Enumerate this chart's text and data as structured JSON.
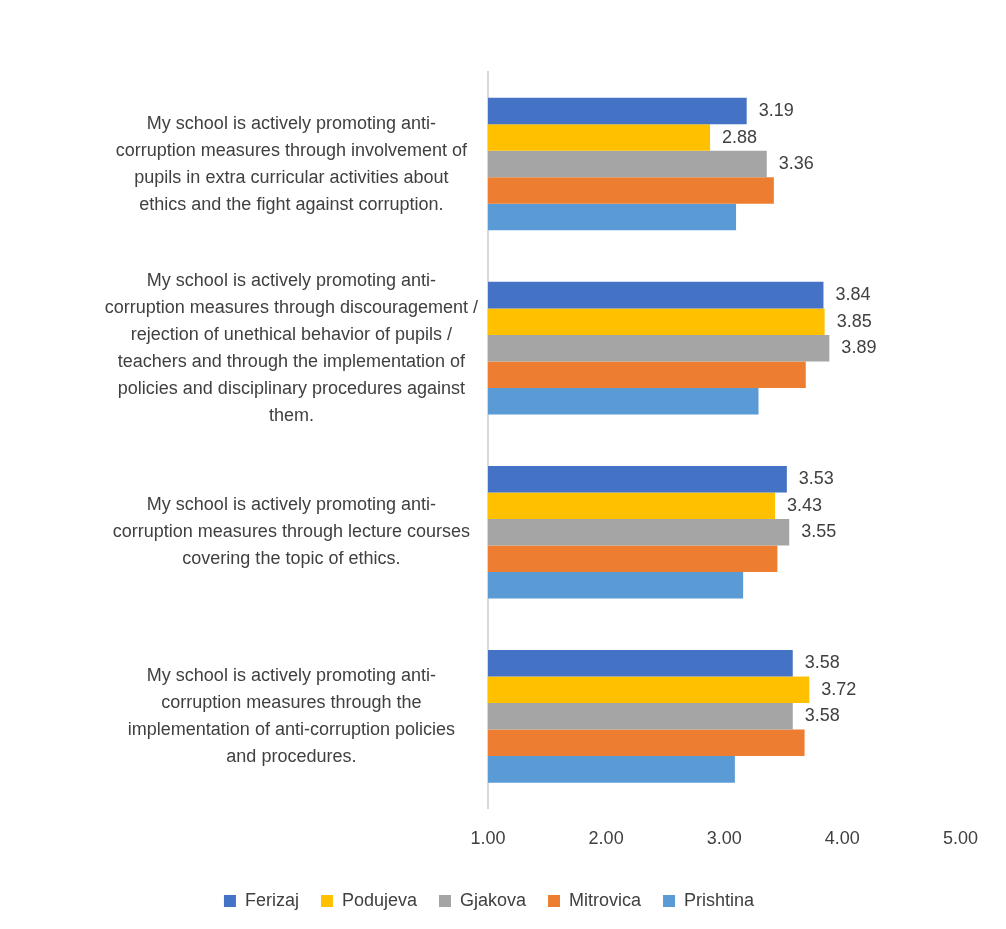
{
  "chart_data": {
    "type": "bar",
    "orientation": "horizontal",
    "categories": [
      "My school is actively promoting anti-corruption measures through involvement of pupils in extra curricular activities about ethics and the fight against corruption.",
      "My school is actively promoting anti-corruption measures through discouragement / rejection of unethical behavior of pupils / teachers and through the implementation of policies and disciplinary procedures against them.",
      "My school is actively promoting anti-corruption measures through lecture courses covering the topic of ethics.",
      "My school is actively promoting anti-corruption measures through the implementation of anti-corruption policies and procedures."
    ],
    "series": [
      {
        "name": "Ferizaj",
        "color": "#4472c4",
        "values": [
          3.19,
          3.84,
          3.53,
          3.58
        ],
        "value_labels": [
          "3.19",
          "3.84",
          "3.53",
          "3.58"
        ]
      },
      {
        "name": "Podujeva",
        "color": "#ffc000",
        "values": [
          2.88,
          3.85,
          3.43,
          3.72
        ],
        "value_labels": [
          "2.88",
          "3.85",
          "3.43",
          "3.72"
        ]
      },
      {
        "name": "Gjakova",
        "color": "#a5a5a5",
        "values": [
          3.36,
          3.89,
          3.55,
          3.58
        ],
        "value_labels": [
          "3.36",
          "3.89",
          "3.55",
          "3.58"
        ]
      },
      {
        "name": "Mitrovica",
        "color": "#ed7d31",
        "values": [
          3.42,
          3.69,
          3.45,
          3.68
        ]
      },
      {
        "name": "Prishtina",
        "color": "#5b9bd5",
        "values": [
          3.1,
          3.29,
          3.16,
          3.09
        ]
      }
    ],
    "xlim": [
      1,
      5
    ],
    "xticks": [
      {
        "value": 1,
        "label": "1.00"
      },
      {
        "value": 2,
        "label": "2.00"
      },
      {
        "value": 3,
        "label": "3.00"
      },
      {
        "value": 4,
        "label": "4.00"
      },
      {
        "value": 5,
        "label": "5.00"
      }
    ],
    "grid": false,
    "legend": "bottom"
  }
}
